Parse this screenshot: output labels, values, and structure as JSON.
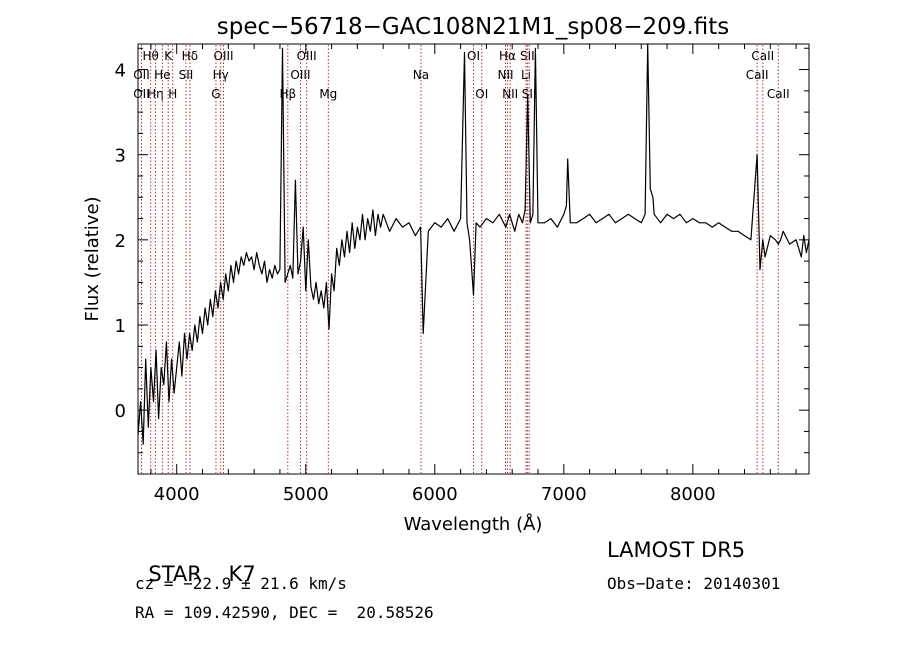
{
  "chart_data": {
    "type": "line",
    "title": "spec−56718−GAC108N21M1_sp08−209.fits",
    "xlabel": "Wavelength (Å)",
    "ylabel": "Flux (relative)",
    "xlim": [
      3700,
      8900
    ],
    "ylim": [
      -0.75,
      4.3
    ],
    "xticks": [
      4000,
      5000,
      6000,
      7000,
      8000
    ],
    "yticks": [
      0,
      1,
      2,
      3,
      4
    ],
    "grid": false,
    "series": [
      {
        "color": "#000000",
        "x": [
          3700,
          3720,
          3740,
          3760,
          3780,
          3800,
          3820,
          3840,
          3860,
          3880,
          3900,
          3920,
          3940,
          3960,
          3980,
          4000,
          4020,
          4040,
          4060,
          4080,
          4100,
          4120,
          4140,
          4160,
          4180,
          4200,
          4220,
          4240,
          4260,
          4280,
          4300,
          4320,
          4340,
          4360,
          4380,
          4400,
          4420,
          4440,
          4460,
          4480,
          4500,
          4520,
          4540,
          4560,
          4580,
          4600,
          4620,
          4640,
          4660,
          4680,
          4700,
          4720,
          4740,
          4760,
          4780,
          4800,
          4820,
          4840,
          4860,
          4880,
          4900,
          4920,
          4940,
          4960,
          4980,
          5000,
          5020,
          5040,
          5060,
          5080,
          5100,
          5120,
          5140,
          5160,
          5180,
          5200,
          5220,
          5240,
          5260,
          5280,
          5300,
          5320,
          5340,
          5360,
          5380,
          5400,
          5420,
          5440,
          5460,
          5480,
          5500,
          5520,
          5540,
          5560,
          5580,
          5600,
          5650,
          5700,
          5750,
          5800,
          5850,
          5890,
          5910,
          5950,
          6000,
          6050,
          6100,
          6150,
          6200,
          6230,
          6250,
          6270,
          6300,
          6320,
          6350,
          6400,
          6450,
          6500,
          6550,
          6580,
          6600,
          6620,
          6650,
          6680,
          6700,
          6720,
          6740,
          6760,
          6780,
          6800,
          6850,
          6900,
          6950,
          7000,
          7020,
          7030,
          7050,
          7100,
          7150,
          7200,
          7250,
          7300,
          7350,
          7400,
          7450,
          7500,
          7550,
          7600,
          7630,
          7650,
          7670,
          7690,
          7700,
          7750,
          7800,
          7850,
          7900,
          7950,
          8000,
          8050,
          8100,
          8150,
          8200,
          8250,
          8300,
          8350,
          8400,
          8450,
          8498,
          8520,
          8542,
          8560,
          8600,
          8640,
          8662,
          8680,
          8700,
          8750,
          8800,
          8840,
          8860,
          8880,
          8900
        ],
        "y": [
          -0.3,
          0.1,
          -0.4,
          0.6,
          -0.2,
          0.5,
          0.1,
          0.7,
          -0.1,
          0.5,
          0.3,
          0.8,
          0.1,
          0.6,
          0.2,
          0.5,
          0.8,
          0.4,
          0.9,
          0.6,
          0.9,
          0.7,
          1.0,
          0.8,
          1.1,
          0.9,
          1.2,
          1.0,
          1.3,
          1.1,
          1.4,
          1.2,
          1.5,
          1.3,
          1.6,
          1.4,
          1.7,
          1.5,
          1.75,
          1.6,
          1.8,
          1.7,
          1.85,
          1.75,
          1.8,
          1.65,
          1.85,
          1.7,
          1.6,
          1.75,
          1.5,
          1.65,
          1.55,
          1.7,
          1.6,
          1.65,
          4.25,
          1.5,
          1.6,
          1.7,
          1.55,
          2.7,
          1.6,
          1.75,
          2.15,
          1.4,
          2.0,
          1.45,
          1.3,
          1.5,
          1.25,
          1.4,
          1.2,
          1.5,
          0.95,
          1.6,
          1.4,
          1.9,
          1.7,
          2.0,
          1.8,
          2.1,
          1.85,
          2.2,
          1.9,
          2.15,
          2.0,
          2.3,
          2.0,
          2.25,
          2.1,
          2.35,
          2.05,
          2.3,
          2.15,
          2.3,
          2.1,
          2.25,
          2.15,
          2.2,
          2.05,
          2.15,
          0.9,
          2.1,
          2.2,
          2.15,
          2.25,
          2.1,
          2.25,
          4.2,
          2.2,
          2.0,
          1.35,
          2.2,
          2.15,
          2.25,
          2.2,
          2.3,
          2.15,
          2.3,
          2.2,
          2.1,
          2.3,
          2.2,
          2.35,
          3.7,
          2.2,
          2.3,
          4.25,
          2.2,
          2.2,
          2.25,
          2.15,
          2.3,
          2.4,
          2.95,
          2.2,
          2.2,
          2.25,
          2.3,
          2.2,
          2.25,
          2.3,
          2.2,
          2.25,
          2.3,
          2.25,
          2.2,
          2.3,
          4.3,
          2.6,
          2.5,
          2.3,
          2.2,
          2.3,
          2.25,
          2.3,
          2.2,
          2.25,
          2.2,
          2.2,
          2.15,
          2.2,
          2.15,
          2.1,
          2.1,
          2.05,
          2.0,
          3.0,
          1.65,
          2.0,
          1.8,
          2.05,
          2.0,
          1.95,
          2.0,
          2.1,
          1.95,
          2.0,
          1.8,
          2.05,
          1.85,
          2.0
        ]
      }
    ],
    "lines": [
      {
        "label": "Hθ",
        "x": 3798,
        "row": 0
      },
      {
        "label": "OII",
        "x": 3727,
        "row": 1
      },
      {
        "label": "OII",
        "x": 3727,
        "row": 2
      },
      {
        "label": "Hη",
        "x": 3835,
        "row": 2
      },
      {
        "label": "K",
        "x": 3934,
        "row": 0
      },
      {
        "label": "He",
        "x": 3889,
        "row": 1
      },
      {
        "label": "H",
        "x": 3969,
        "row": 2
      },
      {
        "label": "Hδ",
        "x": 4102,
        "row": 0
      },
      {
        "label": "SII",
        "x": 4072,
        "row": 1
      },
      {
        "label": "OIII",
        "x": 4363,
        "row": 0
      },
      {
        "label": "Hγ",
        "x": 4341,
        "row": 1
      },
      {
        "label": "G",
        "x": 4304,
        "row": 2
      },
      {
        "label": "Hβ",
        "x": 4861,
        "row": 2
      },
      {
        "label": "OIII",
        "x": 5007,
        "row": 0
      },
      {
        "label": "OIII",
        "x": 4959,
        "row": 1
      },
      {
        "label": "Mg",
        "x": 5175,
        "row": 2
      },
      {
        "label": "Na",
        "x": 5893,
        "row": 1
      },
      {
        "label": "OI",
        "x": 6300,
        "row": 0
      },
      {
        "label": "OI",
        "x": 6364,
        "row": 2
      },
      {
        "label": "Hα",
        "x": 6563,
        "row": 0
      },
      {
        "label": "NII",
        "x": 6548,
        "row": 1
      },
      {
        "label": "NII",
        "x": 6584,
        "row": 2
      },
      {
        "label": "SII",
        "x": 6717,
        "row": 0
      },
      {
        "label": "Li",
        "x": 6707,
        "row": 1
      },
      {
        "label": "SII",
        "x": 6731,
        "row": 2
      },
      {
        "label": "CaII",
        "x": 8542,
        "row": 0
      },
      {
        "label": "CaII",
        "x": 8498,
        "row": 1
      },
      {
        "label": "CaII",
        "x": 8662,
        "row": 2
      }
    ],
    "line_color": "#b03030"
  },
  "info": {
    "class_label": "STAR",
    "subclass": "K7",
    "survey": "LAMOST DR5",
    "cz": "cz = −22.9 ± 21.6 km/s",
    "obs_date": "Obs−Date: 20140301",
    "coords": "RA = 109.42590, DEC =  20.58526"
  }
}
